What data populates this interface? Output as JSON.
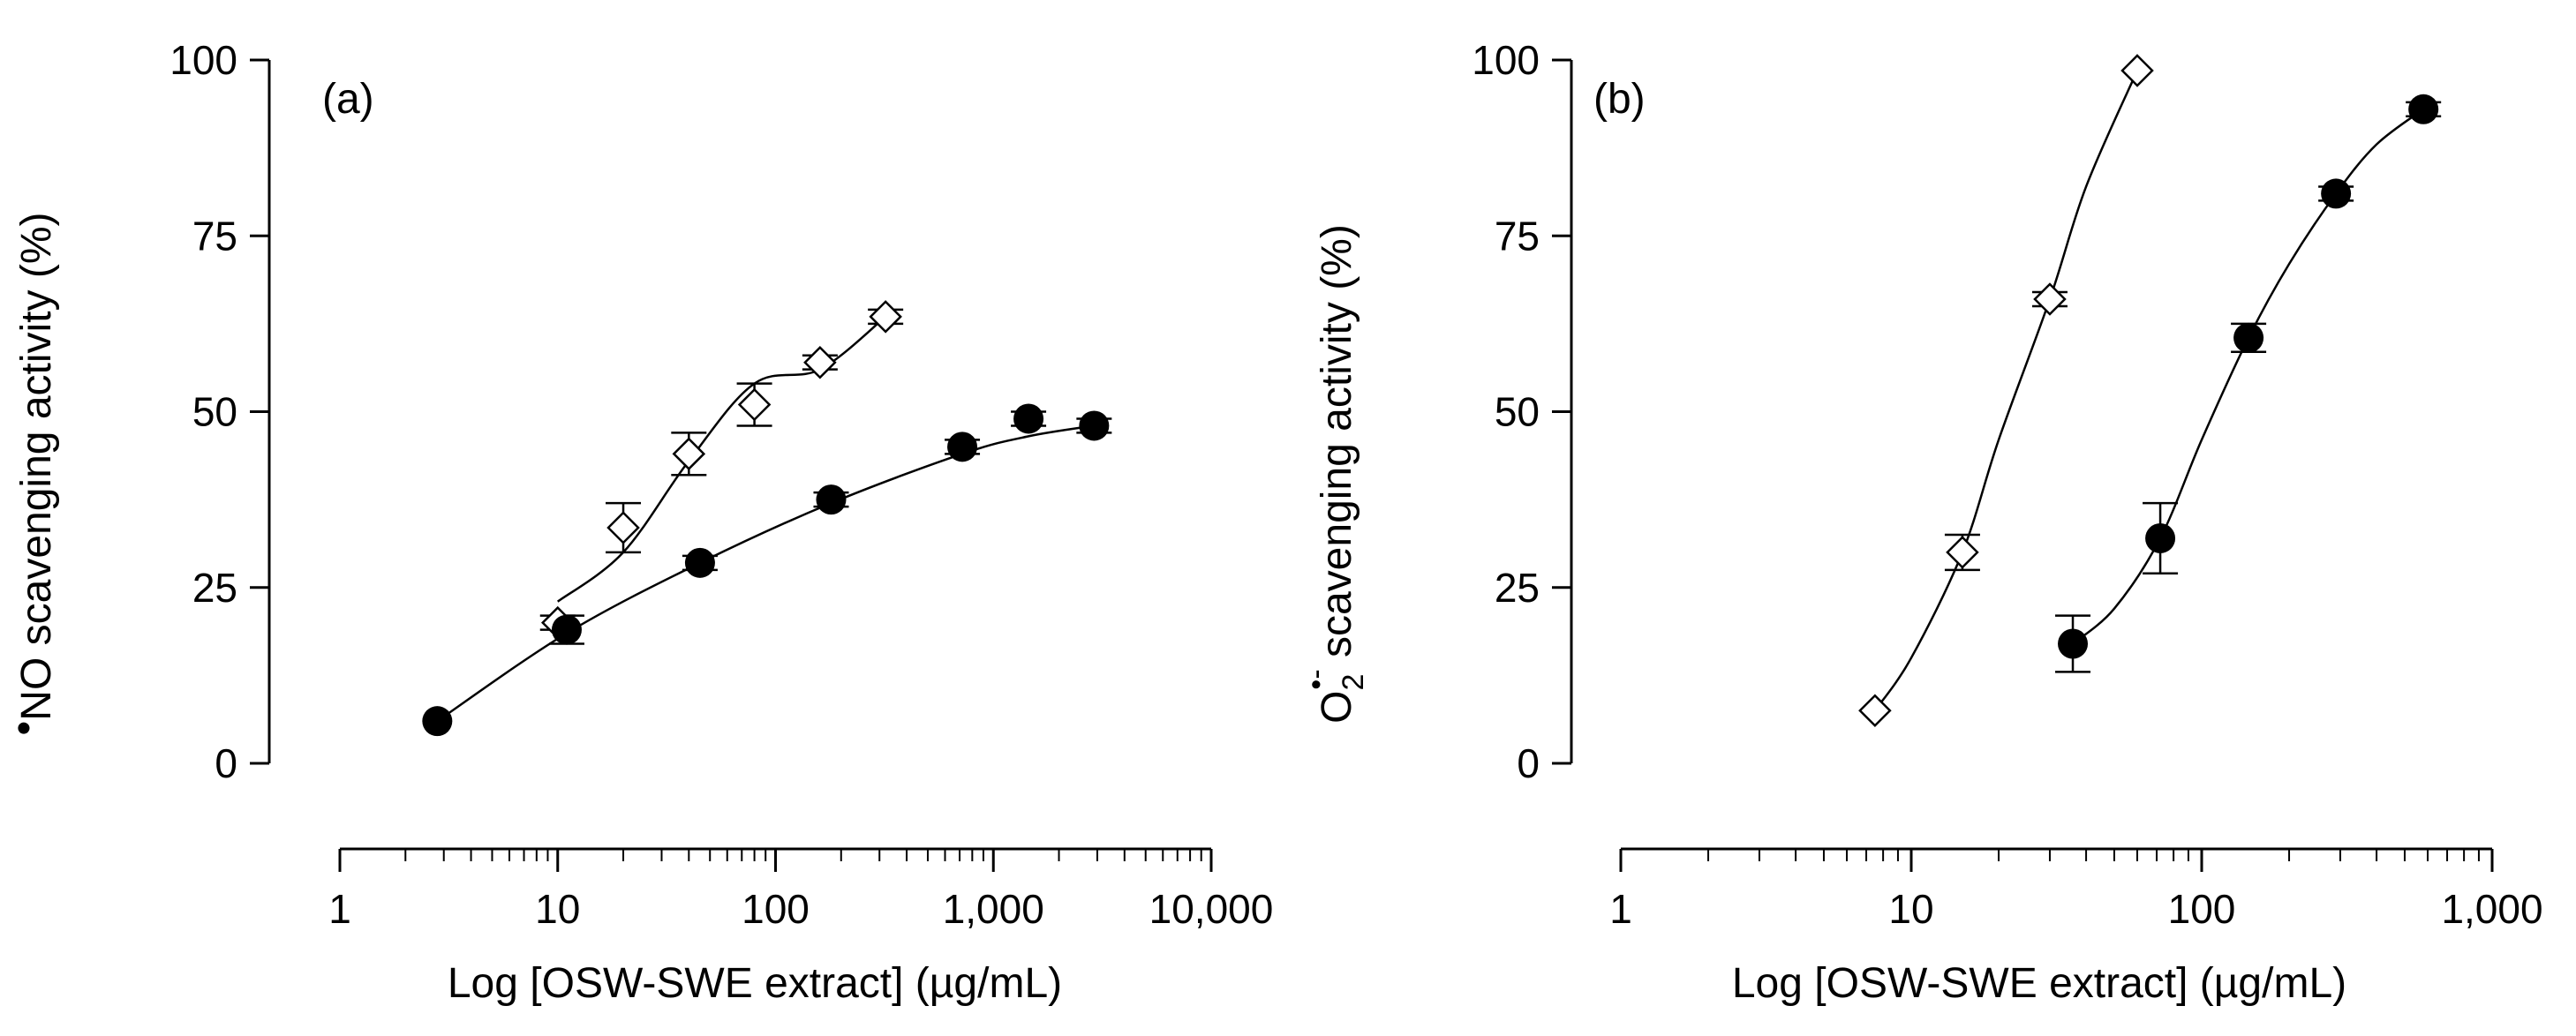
{
  "colors": {
    "axis": "#000000",
    "filled_marker": "#000000",
    "open_marker_fill": "#ffffff"
  },
  "chart_data": [
    {
      "type": "scatter",
      "panel_label": "(a)",
      "xlabel": "Log [OSW-SWE extract] (µg/mL)",
      "ylabel_prefix": "•",
      "ylabel": "NO scavenging activity (%)",
      "xscale": "log",
      "xlim": [
        1,
        10000
      ],
      "ylim": [
        0,
        100
      ],
      "x_ticks": [
        1,
        10,
        100,
        1000,
        10000
      ],
      "x_tick_labels": [
        "1",
        "10",
        "100",
        "1,000",
        "10,000"
      ],
      "y_ticks": [
        0,
        25,
        50,
        75,
        100
      ],
      "y_tick_labels": [
        "0",
        "25",
        "50",
        "75",
        "100"
      ],
      "series": [
        {
          "name": "open diamonds",
          "marker": "diamond-open",
          "x": [
            10,
            20,
            40,
            80,
            160,
            320
          ],
          "y": [
            20,
            33.5,
            44,
            51,
            57,
            63.5
          ],
          "err": [
            1,
            3.5,
            3,
            3,
            1,
            1
          ],
          "fit": {
            "kind": "spline",
            "x": [
              10,
              20,
              40,
              80,
              160,
              320
            ],
            "y": [
              23,
              30,
              43,
              54,
              56,
              63.5
            ]
          }
        },
        {
          "name": "filled circles",
          "marker": "circle-filled",
          "x": [
            2.8,
            11,
            45,
            180,
            720,
            1450,
            2900
          ],
          "y": [
            6,
            19,
            28.5,
            37.5,
            45,
            49,
            48
          ],
          "err": [
            0.5,
            2,
            1,
            1,
            1,
            1,
            1
          ],
          "fit": {
            "kind": "spline",
            "x": [
              2.8,
              11,
              45,
              180,
              720,
              1450,
              2900
            ],
            "y": [
              6,
              18.5,
              28.5,
              37,
              44,
              46.5,
              48
            ]
          }
        }
      ]
    },
    {
      "type": "scatter",
      "panel_label": "(b)",
      "xlabel": "Log [OSW-SWE extract] (µg/mL)",
      "ylabel_main": "O",
      "ylabel_sub": "2",
      "ylabel_sup": "•-",
      "ylabel": " scavenging activity (%)",
      "xscale": "log",
      "xlim": [
        1,
        1000
      ],
      "ylim": [
        0,
        100
      ],
      "x_ticks": [
        1,
        10,
        100,
        1000
      ],
      "x_tick_labels": [
        "1",
        "10",
        "100",
        "1,000"
      ],
      "y_ticks": [
        0,
        25,
        50,
        75,
        100
      ],
      "y_tick_labels": [
        "0",
        "25",
        "50",
        "75",
        "100"
      ],
      "series": [
        {
          "name": "open diamonds",
          "marker": "diamond-open",
          "x": [
            7.5,
            15,
            30,
            60
          ],
          "y": [
            7.5,
            30,
            66,
            98.5
          ],
          "err": [
            0.5,
            2.5,
            1,
            0.5
          ],
          "fit": {
            "kind": "sigmoid",
            "x": [
              7.5,
              10,
              15,
              20,
              30,
              40,
              60
            ],
            "y": [
              7.5,
              15,
              30,
              46,
              66,
              82,
              98.5
            ]
          }
        },
        {
          "name": "filled circles",
          "marker": "circle-filled",
          "x": [
            36,
            72,
            145,
            290,
            580
          ],
          "y": [
            17,
            32,
            60.5,
            81,
            93
          ],
          "err": [
            4,
            5,
            2,
            1,
            1
          ],
          "fit": {
            "kind": "sigmoid",
            "x": [
              36,
              50,
              72,
              100,
              145,
              200,
              290,
              400,
              580
            ],
            "y": [
              17,
              22,
              32,
              46,
              60.5,
              71,
              81,
              88,
              93
            ]
          }
        }
      ]
    }
  ]
}
